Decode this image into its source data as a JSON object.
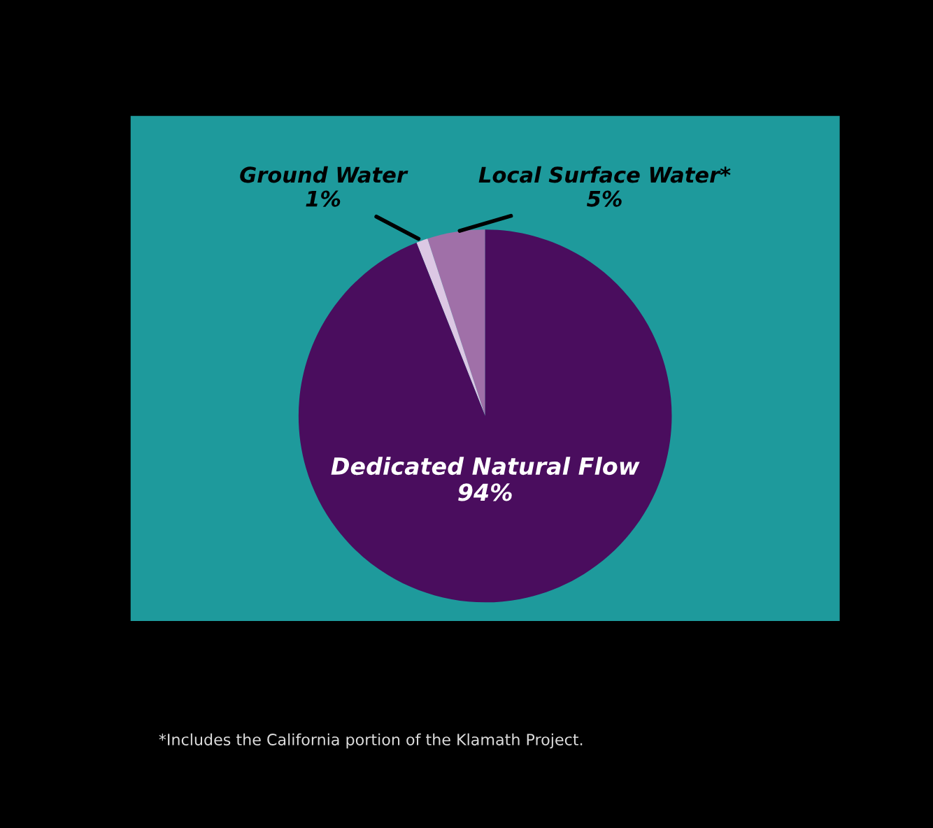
{
  "chart_data": {
    "type": "pie",
    "categories": [
      "Local Surface Water*",
      "Ground Water",
      "Dedicated Natural Flow"
    ],
    "values": [
      5,
      1,
      94
    ],
    "colors": [
      "#a070a8",
      "#dcc8e4",
      "#4a0d5e"
    ],
    "value_labels": [
      "5%",
      "1%",
      "94%"
    ],
    "legend": false,
    "annotations": [
      "*Includes the California portion of the Klamath Project."
    ]
  }
}
